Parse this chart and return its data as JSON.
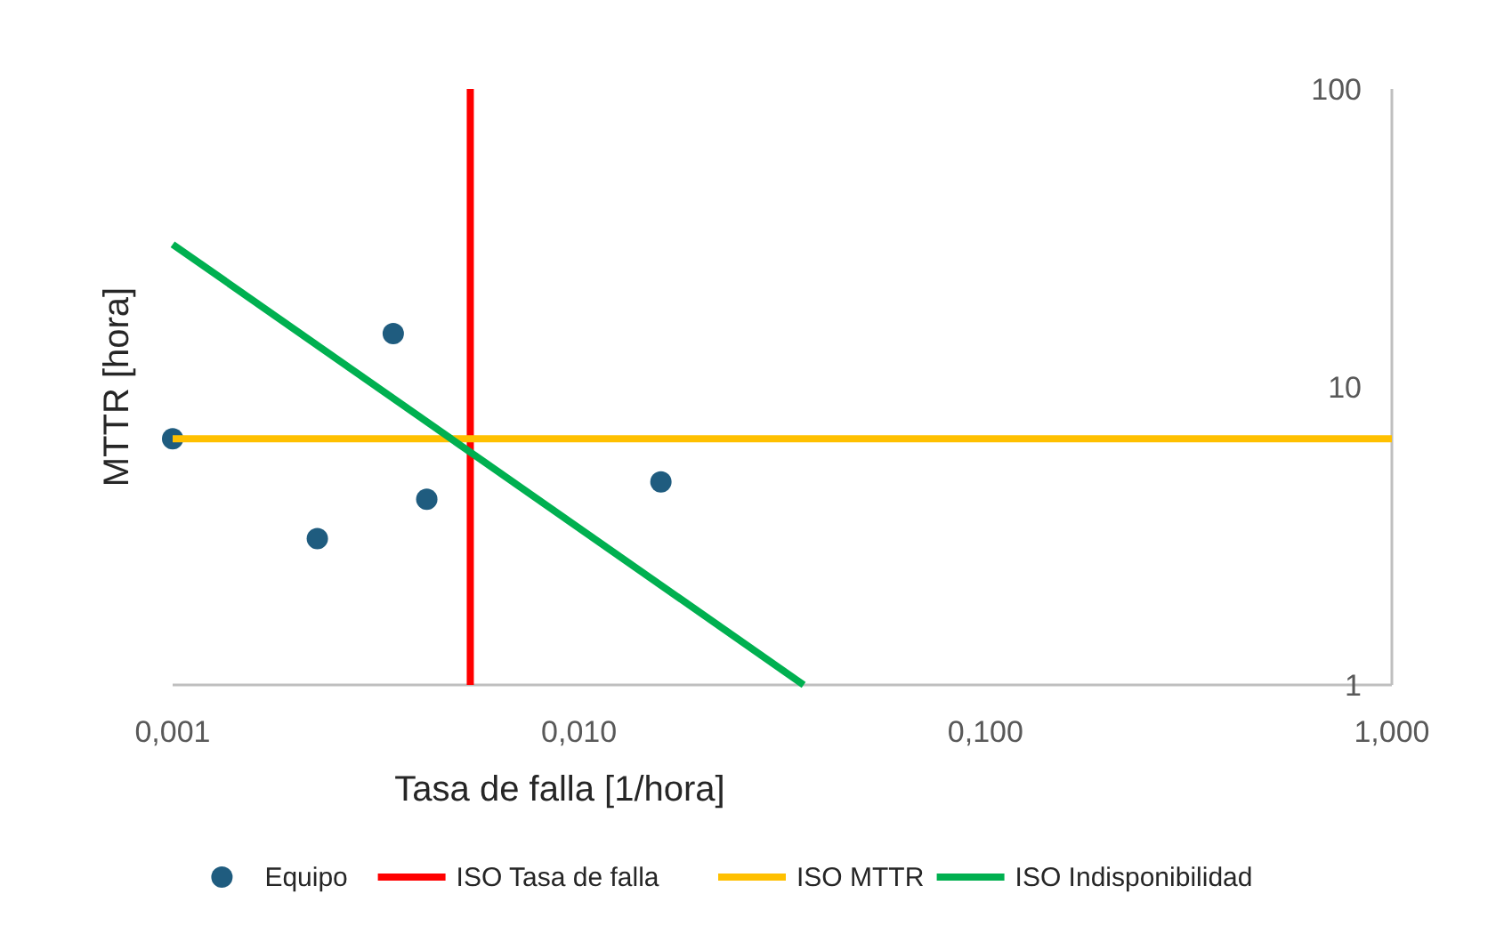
{
  "chart_data": {
    "type": "scatter",
    "xlabel": "Tasa de falla [1/hora]",
    "ylabel": "MTTR [hora]",
    "log": "xy",
    "xlim": [
      0.001,
      1
    ],
    "ylim": [
      1,
      100
    ],
    "xticks": [
      {
        "value": 0.001,
        "label": "0,001"
      },
      {
        "value": 0.01,
        "label": "0,010"
      },
      {
        "value": 0.1,
        "label": "0,100"
      },
      {
        "value": 1,
        "label": "1,000"
      }
    ],
    "yticks": [
      1,
      10,
      100
    ],
    "grid": false,
    "legend": "bottom",
    "series": [
      {
        "name": "Equipo",
        "marker": "circle",
        "color": "#1f5c7f",
        "x": [
          0.001,
          0.00227,
          0.00349,
          0.00422,
          0.0159
        ],
        "values": [
          6.7,
          3.1,
          15.1,
          4.2,
          4.8
        ]
      },
      {
        "name": "ISO Tasa de falla",
        "type": "line",
        "line_style": "solid",
        "color": "#ff0000",
        "x": [
          0.0054,
          0.0054
        ],
        "values": [
          1,
          100
        ]
      },
      {
        "name": "ISO MTTR",
        "type": "line",
        "line_style": "solid",
        "color": "#ffc000",
        "x": [
          0.001,
          1
        ],
        "values": [
          6.7,
          6.7
        ]
      },
      {
        "name": "ISO Indisponibilidad",
        "type": "line",
        "line_style": "solid",
        "color": "#00b050",
        "x": [
          0.001,
          0.0357
        ],
        "values": [
          30.1,
          1
        ]
      }
    ]
  }
}
